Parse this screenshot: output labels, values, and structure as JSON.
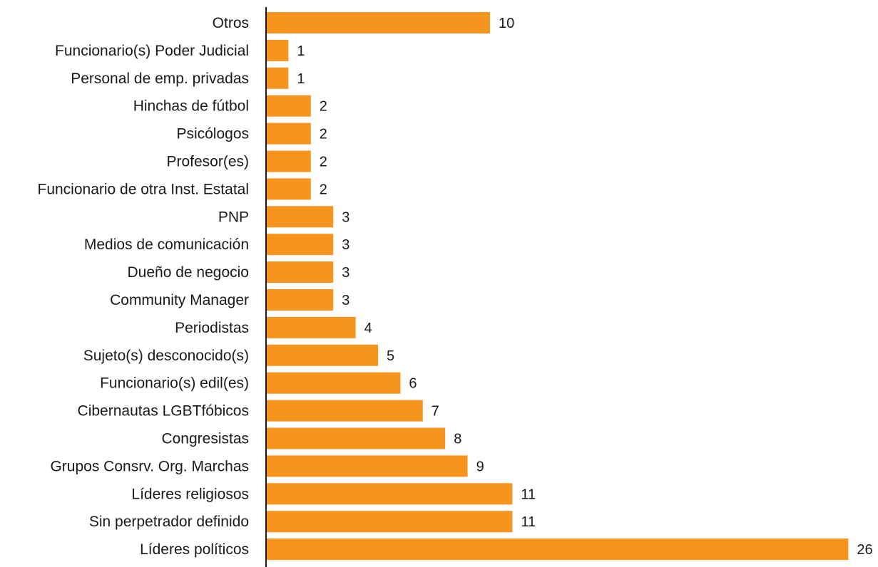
{
  "chart_data": {
    "type": "bar",
    "orientation": "horizontal",
    "title": "",
    "xlabel": "",
    "ylabel": "",
    "xlim": [
      0,
      26
    ],
    "grid": false,
    "legend": "none",
    "bar_color": "#F7941D",
    "categories": [
      "Otros",
      "Funcionario(s) Poder Judicial",
      "Personal de emp. privadas",
      "Hinchas de fútbol",
      "Psicólogos",
      "Profesor(es)",
      "Funcionario de otra Inst. Estatal",
      "PNP",
      "Medios de comunicación",
      "Dueño de negocio",
      "Community Manager",
      "Periodistas",
      "Sujeto(s) desconocido(s)",
      "Funcionario(s) edil(es)",
      "Cibernautas LGBTfóbicos",
      "Congresistas",
      "Grupos Consrv. Org. Marchas",
      "Líderes religiosos",
      "Sin perpetrador definido",
      "Líderes políticos"
    ],
    "values": [
      10,
      1,
      1,
      2,
      2,
      2,
      2,
      3,
      3,
      3,
      3,
      4,
      5,
      6,
      7,
      8,
      9,
      11,
      11,
      26
    ]
  }
}
